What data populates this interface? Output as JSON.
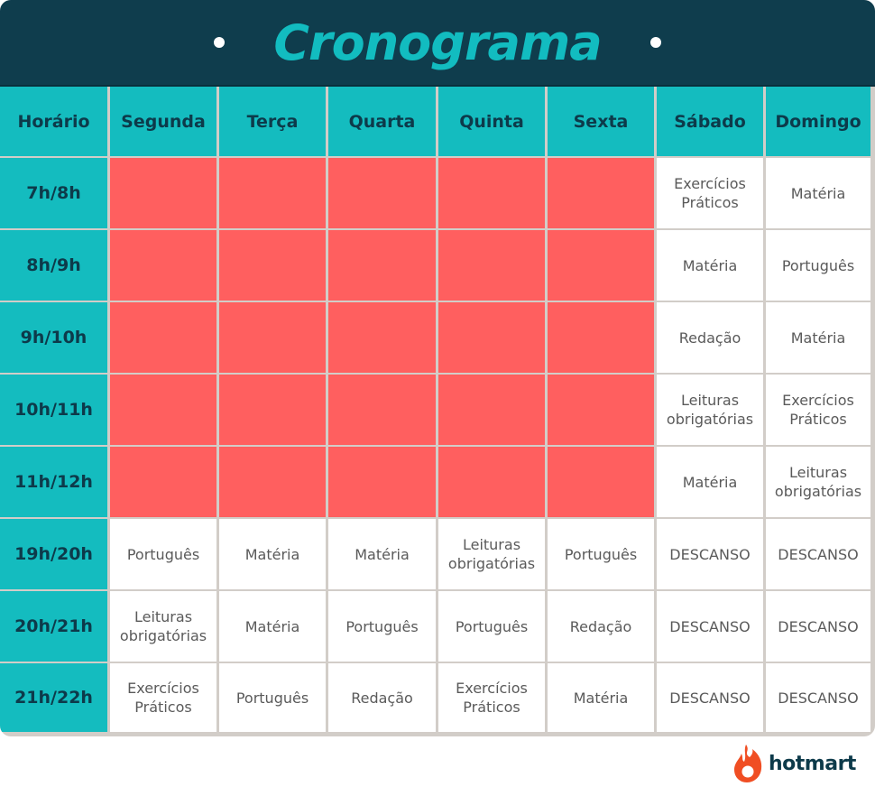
{
  "title": "Cronograma",
  "brand": {
    "name": "hotmart",
    "icon": "flame-icon",
    "color": "#f04e23"
  },
  "colors": {
    "header_bg": "#0f3d4d",
    "accent": "#14bcbf",
    "busy": "#ff5f5f",
    "cell": "#ffffff"
  },
  "columns": [
    "Horário",
    "Segunda",
    "Terça",
    "Quarta",
    "Quinta",
    "Sexta",
    "Sábado",
    "Domingo"
  ],
  "rows": [
    {
      "time": "7h/8h",
      "cells": [
        "",
        "",
        "",
        "",
        "",
        "Exercícios\nPráticos",
        "Matéria"
      ]
    },
    {
      "time": "8h/9h",
      "cells": [
        "",
        "",
        "",
        "",
        "",
        "Matéria",
        "Português"
      ]
    },
    {
      "time": "9h/10h",
      "cells": [
        "",
        "",
        "",
        "",
        "",
        "Redação",
        "Matéria"
      ]
    },
    {
      "time": "10h/11h",
      "cells": [
        "",
        "",
        "",
        "",
        "",
        "Leituras\nobrigatórias",
        "Exercícios\nPráticos"
      ]
    },
    {
      "time": "11h/12h",
      "cells": [
        "",
        "",
        "",
        "",
        "",
        "Matéria",
        "Leituras\nobrigatórias"
      ]
    },
    {
      "time": "19h/20h",
      "cells": [
        "Português",
        "Matéria",
        "Matéria",
        "Leituras\nobrigatórias",
        "Português",
        "DESCANSO",
        "DESCANSO"
      ]
    },
    {
      "time": "20h/21h",
      "cells": [
        "Leituras\nobrigatórias",
        "Matéria",
        "Português",
        "Português",
        "Redação",
        "DESCANSO",
        "DESCANSO"
      ]
    },
    {
      "time": "21h/22h",
      "cells": [
        "Exercícios\nPráticos",
        "Português",
        "Redação",
        "Exercícios\nPráticos",
        "Matéria",
        "DESCANSO",
        "DESCANSO"
      ]
    }
  ]
}
